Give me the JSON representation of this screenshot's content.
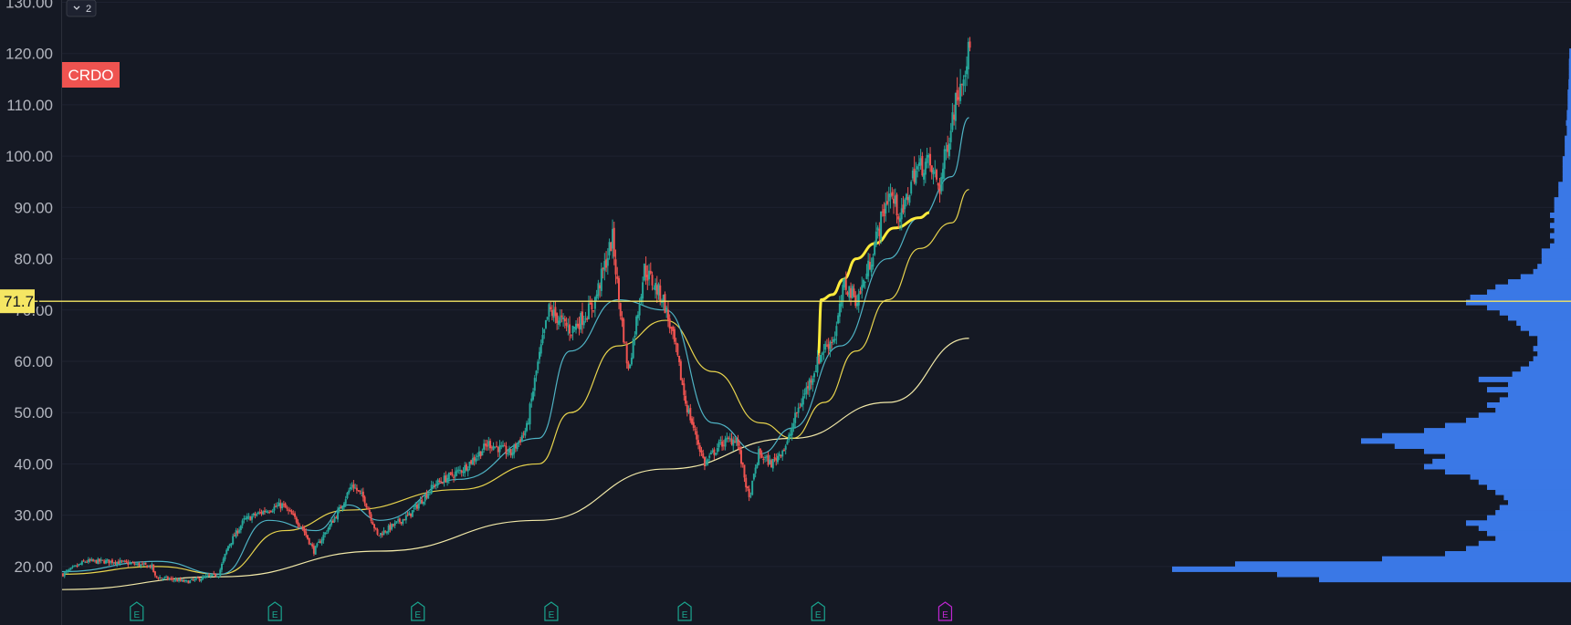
{
  "toolbar": {
    "collapse_label": "2"
  },
  "colors": {
    "background": "#151924",
    "grid": "#1e2230",
    "up": "#26a69a",
    "down": "#ef5350",
    "ma_fast": "#4fb3c4",
    "ma_mid": "#e8d44d",
    "ma_slow": "#f2e9a8",
    "ma_anchor": "#ffeb3b",
    "horizontal_line": "#f5e663",
    "volume_profile": "#3a78e6",
    "earnings": "#1aa58f",
    "earnings_upcoming": "#c026d3"
  },
  "chart_data": {
    "type": "candlestick",
    "symbol": "CRDO",
    "y_axis": {
      "ticks": [
        "130.00",
        "120.00",
        "110.00",
        "100.00",
        "90.00",
        "80.00",
        "70.00",
        "60.00",
        "50.00",
        "40.00",
        "30.00",
        "20.00"
      ],
      "range": [
        15,
        134
      ],
      "side": "left"
    },
    "price_line": {
      "value": 71.71,
      "label": "71.71"
    },
    "price_anchors": [
      [
        0,
        18.5
      ],
      [
        14,
        21
      ],
      [
        32,
        21
      ],
      [
        56,
        20
      ],
      [
        58,
        18
      ],
      [
        78,
        17
      ],
      [
        98,
        18.5
      ],
      [
        104,
        24
      ],
      [
        114,
        29
      ],
      [
        128,
        31
      ],
      [
        138,
        32
      ],
      [
        150,
        28
      ],
      [
        158,
        23
      ],
      [
        166,
        27
      ],
      [
        174,
        31
      ],
      [
        182,
        36
      ],
      [
        190,
        33
      ],
      [
        198,
        26
      ],
      [
        208,
        28
      ],
      [
        218,
        30
      ],
      [
        234,
        36
      ],
      [
        252,
        39
      ],
      [
        268,
        44
      ],
      [
        282,
        42
      ],
      [
        292,
        47
      ],
      [
        298,
        58
      ],
      [
        306,
        70
      ],
      [
        320,
        66
      ],
      [
        334,
        71
      ],
      [
        346,
        84
      ],
      [
        350,
        72
      ],
      [
        356,
        58
      ],
      [
        366,
        78
      ],
      [
        378,
        72
      ],
      [
        386,
        62
      ],
      [
        392,
        52
      ],
      [
        398,
        46
      ],
      [
        404,
        40
      ],
      [
        414,
        44
      ],
      [
        424,
        45
      ],
      [
        432,
        33
      ],
      [
        438,
        42
      ],
      [
        446,
        40
      ],
      [
        456,
        44
      ],
      [
        462,
        50
      ],
      [
        470,
        56
      ],
      [
        478,
        62
      ],
      [
        486,
        65
      ],
      [
        492,
        75
      ],
      [
        500,
        72
      ],
      [
        506,
        77
      ],
      [
        512,
        84
      ],
      [
        520,
        93
      ],
      [
        528,
        88
      ],
      [
        536,
        97
      ],
      [
        544,
        99
      ],
      [
        552,
        94
      ],
      [
        560,
        108
      ],
      [
        566,
        116
      ],
      [
        571,
        121
      ]
    ],
    "moving_averages": [
      {
        "color_key": "ma_slow",
        "points": [
          [
            0,
            15.5
          ],
          [
            100,
            18
          ],
          [
            200,
            23
          ],
          [
            300,
            29
          ],
          [
            380,
            39
          ],
          [
            460,
            45
          ],
          [
            520,
            52
          ],
          [
            571,
            64.5
          ]
        ]
      },
      {
        "color_key": "ma_mid",
        "points": [
          [
            0,
            18.5
          ],
          [
            60,
            20
          ],
          [
            100,
            18.5
          ],
          [
            140,
            27
          ],
          [
            180,
            31
          ],
          [
            250,
            35
          ],
          [
            300,
            40
          ],
          [
            320,
            50
          ],
          [
            350,
            63
          ],
          [
            380,
            68
          ],
          [
            410,
            58
          ],
          [
            440,
            48
          ],
          [
            460,
            45
          ],
          [
            480,
            52
          ],
          [
            500,
            62
          ],
          [
            520,
            72
          ],
          [
            540,
            82
          ],
          [
            560,
            87
          ],
          [
            571,
            93.5
          ]
        ]
      },
      {
        "color_key": "ma_fast",
        "points": [
          [
            0,
            19
          ],
          [
            60,
            21
          ],
          [
            100,
            18.5
          ],
          [
            130,
            29
          ],
          [
            160,
            27
          ],
          [
            180,
            32
          ],
          [
            200,
            29
          ],
          [
            250,
            37
          ],
          [
            300,
            45
          ],
          [
            320,
            62
          ],
          [
            350,
            72
          ],
          [
            380,
            70
          ],
          [
            410,
            48
          ],
          [
            440,
            42
          ],
          [
            460,
            47
          ],
          [
            490,
            63
          ],
          [
            520,
            80
          ],
          [
            540,
            88
          ],
          [
            560,
            96
          ],
          [
            571,
            107.5
          ]
        ]
      },
      {
        "color_key": "ma_anchor",
        "thick": true,
        "points": [
          [
            476,
            61
          ],
          [
            478,
            72
          ],
          [
            485,
            73
          ],
          [
            492,
            76
          ],
          [
            500,
            80
          ],
          [
            512,
            83
          ],
          [
            524,
            86
          ],
          [
            540,
            88
          ],
          [
            546,
            89
          ]
        ]
      }
    ],
    "volume_profile": {
      "bins": [
        [
          17.5,
          0.6
        ],
        [
          18.5,
          0.7
        ],
        [
          19.5,
          0.95
        ],
        [
          20.5,
          0.8
        ],
        [
          21.5,
          0.45
        ],
        [
          22.5,
          0.3
        ],
        [
          23.5,
          0.25
        ],
        [
          24.5,
          0.22
        ],
        [
          25.5,
          0.18
        ],
        [
          26.5,
          0.2
        ],
        [
          27.5,
          0.22
        ],
        [
          28.5,
          0.25
        ],
        [
          29.5,
          0.2
        ],
        [
          30.5,
          0.18
        ],
        [
          31.5,
          0.17
        ],
        [
          32.5,
          0.15
        ],
        [
          33.5,
          0.16
        ],
        [
          34.5,
          0.18
        ],
        [
          35.5,
          0.2
        ],
        [
          36.5,
          0.22
        ],
        [
          37.5,
          0.24
        ],
        [
          38.5,
          0.3
        ],
        [
          39.5,
          0.35
        ],
        [
          40.5,
          0.33
        ],
        [
          41.5,
          0.3
        ],
        [
          42.5,
          0.35
        ],
        [
          43.5,
          0.42
        ],
        [
          44.5,
          0.5
        ],
        [
          45.5,
          0.45
        ],
        [
          46.5,
          0.35
        ],
        [
          47.5,
          0.3
        ],
        [
          48.5,
          0.25
        ],
        [
          49.5,
          0.22
        ],
        [
          50.5,
          0.18
        ],
        [
          51.5,
          0.2
        ],
        [
          52.5,
          0.17
        ],
        [
          53.5,
          0.15
        ],
        [
          54.5,
          0.2
        ],
        [
          55.5,
          0.15
        ],
        [
          56.5,
          0.22
        ],
        [
          57.5,
          0.14
        ],
        [
          58.5,
          0.12
        ],
        [
          59.5,
          0.1
        ],
        [
          60.5,
          0.09
        ],
        [
          61.5,
          0.08
        ],
        [
          62.5,
          0.09
        ],
        [
          63.5,
          0.08
        ],
        [
          64.5,
          0.08
        ],
        [
          65.5,
          0.1
        ],
        [
          66.5,
          0.12
        ],
        [
          67.5,
          0.13
        ],
        [
          68.5,
          0.15
        ],
        [
          69.5,
          0.17
        ],
        [
          70.5,
          0.2
        ],
        [
          71.5,
          0.25
        ],
        [
          72.5,
          0.24
        ],
        [
          73.5,
          0.2
        ],
        [
          74.5,
          0.18
        ],
        [
          75.5,
          0.15
        ],
        [
          76.5,
          0.12
        ],
        [
          77.5,
          0.09
        ],
        [
          78.5,
          0.08
        ],
        [
          79.5,
          0.07
        ],
        [
          80.5,
          0.07
        ],
        [
          81.5,
          0.07
        ],
        [
          82.5,
          0.05
        ],
        [
          83.5,
          0.04
        ],
        [
          84.5,
          0.05
        ],
        [
          85.5,
          0.04
        ],
        [
          86.5,
          0.05
        ],
        [
          87.5,
          0.04
        ],
        [
          88.5,
          0.05
        ],
        [
          89.5,
          0.04
        ],
        [
          90.5,
          0.04
        ],
        [
          91.5,
          0.04
        ],
        [
          92.5,
          0.03
        ],
        [
          93.5,
          0.03
        ],
        [
          94.5,
          0.03
        ],
        [
          95.5,
          0.02
        ],
        [
          96.5,
          0.02
        ],
        [
          97.5,
          0.02
        ],
        [
          98.5,
          0.02
        ],
        [
          99.5,
          0.02
        ],
        [
          100.5,
          0.015
        ],
        [
          101.5,
          0.015
        ],
        [
          102.5,
          0.015
        ],
        [
          103.5,
          0.015
        ],
        [
          104.5,
          0.01
        ],
        [
          105.5,
          0.01
        ],
        [
          106.5,
          0.012
        ],
        [
          107.5,
          0.01
        ],
        [
          108.5,
          0.01
        ],
        [
          109.5,
          0.008
        ],
        [
          110.5,
          0.008
        ],
        [
          111.5,
          0.008
        ],
        [
          112.5,
          0.008
        ],
        [
          113.5,
          0.006
        ],
        [
          114.5,
          0.006
        ],
        [
          115.5,
          0.005
        ],
        [
          116.5,
          0.005
        ],
        [
          117.5,
          0.005
        ],
        [
          118.5,
          0.005
        ],
        [
          119.5,
          0.004
        ],
        [
          120.5,
          0.004
        ]
      ]
    },
    "earnings_markers": [
      {
        "label": "E",
        "at": 47,
        "upcoming": false
      },
      {
        "label": "E",
        "at": 134,
        "upcoming": false
      },
      {
        "label": "E",
        "at": 224,
        "upcoming": false
      },
      {
        "label": "E",
        "at": 308,
        "upcoming": false
      },
      {
        "label": "E",
        "at": 392,
        "upcoming": false
      },
      {
        "label": "E",
        "at": 476,
        "upcoming": false
      },
      {
        "label": "E",
        "at": 556,
        "upcoming": true
      }
    ],
    "grid": true,
    "legend": "none"
  }
}
